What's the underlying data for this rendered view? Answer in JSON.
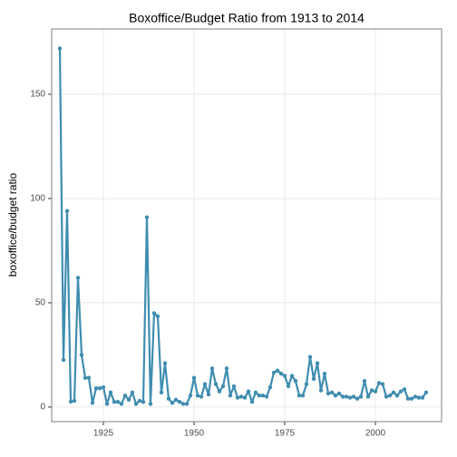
{
  "chart_data": {
    "type": "line",
    "title": "Boxoffice/Budget Ratio from 1913 to 2014",
    "y_label": "boxoffice/budget ratio",
    "x": [
      1913,
      1914,
      1915,
      1916,
      1917,
      1918,
      1919,
      1920,
      1921,
      1922,
      1923,
      1924,
      1925,
      1926,
      1927,
      1928,
      1929,
      1930,
      1931,
      1932,
      1933,
      1934,
      1935,
      1936,
      1937,
      1938,
      1939,
      1940,
      1941,
      1942,
      1943,
      1944,
      1945,
      1946,
      1947,
      1948,
      1949,
      1950,
      1951,
      1952,
      1953,
      1954,
      1955,
      1956,
      1957,
      1958,
      1959,
      1960,
      1961,
      1962,
      1963,
      1964,
      1965,
      1966,
      1967,
      1968,
      1969,
      1970,
      1971,
      1972,
      1973,
      1974,
      1975,
      1976,
      1977,
      1978,
      1979,
      1980,
      1981,
      1982,
      1983,
      1984,
      1985,
      1986,
      1987,
      1988,
      1989,
      1990,
      1991,
      1992,
      1993,
      1994,
      1995,
      1996,
      1997,
      1998,
      1999,
      2000,
      2001,
      2002,
      2003,
      2004,
      2005,
      2006,
      2007,
      2008,
      2009,
      2010,
      2011,
      2012,
      2013,
      2014
    ],
    "series": [
      {
        "name": "ratio",
        "color": "#3f8db0",
        "values": [
          172,
          22.6,
          94,
          2.6,
          3,
          62,
          25,
          14,
          14,
          2,
          9,
          9,
          9.5,
          1.5,
          7,
          2.5,
          2.5,
          1.5,
          5.5,
          3.5,
          7,
          1.5,
          3,
          2.5,
          91,
          1.5,
          45,
          43.5,
          7,
          21,
          4,
          2,
          3.5,
          2.5,
          1.5,
          1.5,
          5.5,
          14,
          5.5,
          5,
          11,
          6,
          18.5,
          11,
          7.5,
          10,
          18.5,
          5.5,
          10,
          4.5,
          5,
          4.5,
          7.5,
          2.5,
          7,
          5.5,
          5.5,
          5,
          9.5,
          16.5,
          17.5,
          16,
          15,
          10,
          15,
          12.5,
          5.5,
          5.5,
          11,
          24,
          13.5,
          21,
          8,
          16,
          6.5,
          7,
          5.5,
          6.5,
          5,
          5,
          4.5,
          5,
          4,
          5,
          12.5,
          5,
          8,
          7.5,
          11.5,
          11,
          5,
          5.5,
          7,
          5.5,
          7.5,
          8.5,
          4,
          4,
          5,
          4.5,
          4.5,
          7
        ]
      }
    ],
    "xlim": [
      1910.75,
      2018.25
    ],
    "ylim": [
      -7,
      181.3
    ],
    "xticks": [
      1925,
      1950,
      1975,
      2000
    ],
    "yticks": [
      0,
      50,
      100,
      150
    ],
    "grid": true
  }
}
